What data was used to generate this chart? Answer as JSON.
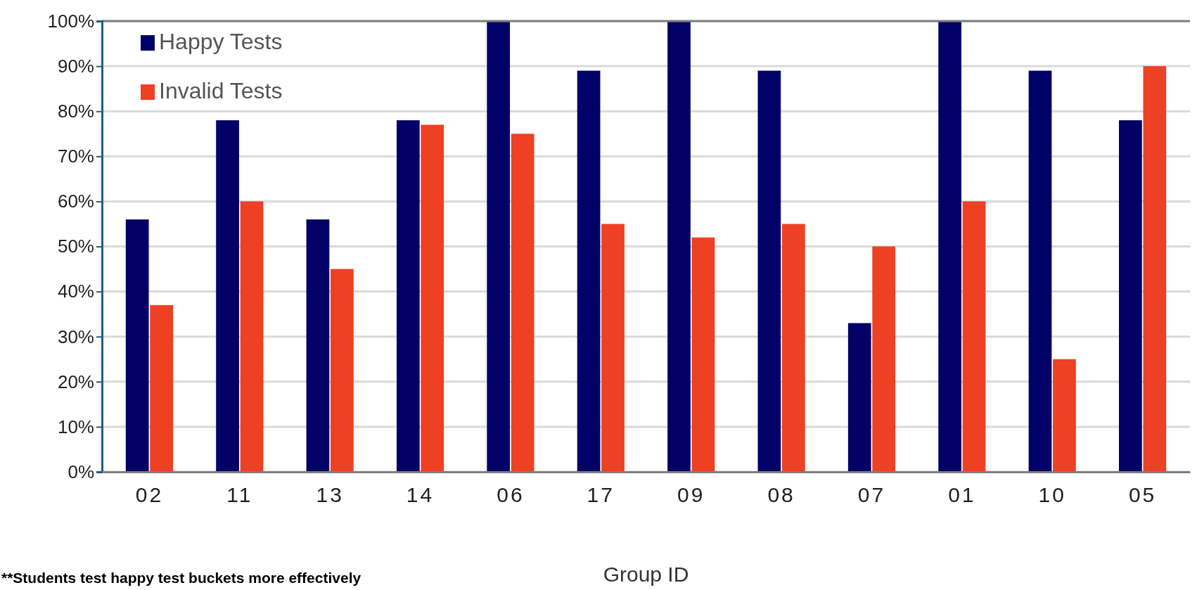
{
  "chart_data": {
    "type": "bar",
    "xlabel": "Group ID",
    "categories": [
      "02",
      "11",
      "13",
      "14",
      "06",
      "17",
      "09",
      "08",
      "07",
      "01",
      "10",
      "05"
    ],
    "series": [
      {
        "name": "Happy Tests",
        "color": "#000066",
        "values": [
          56,
          78,
          56,
          78,
          100,
          89,
          100,
          89,
          33,
          100,
          89,
          78
        ]
      },
      {
        "name": "Invalid Tests",
        "color": "#ee4022",
        "values": [
          37,
          60,
          45,
          77,
          75,
          55,
          52,
          55,
          50,
          60,
          25,
          90
        ]
      }
    ],
    "ylim": [
      0,
      100
    ],
    "yticks": [
      {
        "value": 0,
        "label": "0%"
      },
      {
        "value": 10,
        "label": "10%"
      },
      {
        "value": 20,
        "label": "20%"
      },
      {
        "value": 30,
        "label": "30%"
      },
      {
        "value": 40,
        "label": "40%"
      },
      {
        "value": 50,
        "label": "50%"
      },
      {
        "value": 60,
        "label": "60%"
      },
      {
        "value": 70,
        "label": "70%"
      },
      {
        "value": 80,
        "label": "80%"
      },
      {
        "value": 90,
        "label": "90%"
      },
      {
        "value": 100,
        "label": "100%"
      }
    ],
    "grid": "y",
    "legend": "top left",
    "annotations": [
      "**Students test happy test buckets more effectively"
    ]
  }
}
